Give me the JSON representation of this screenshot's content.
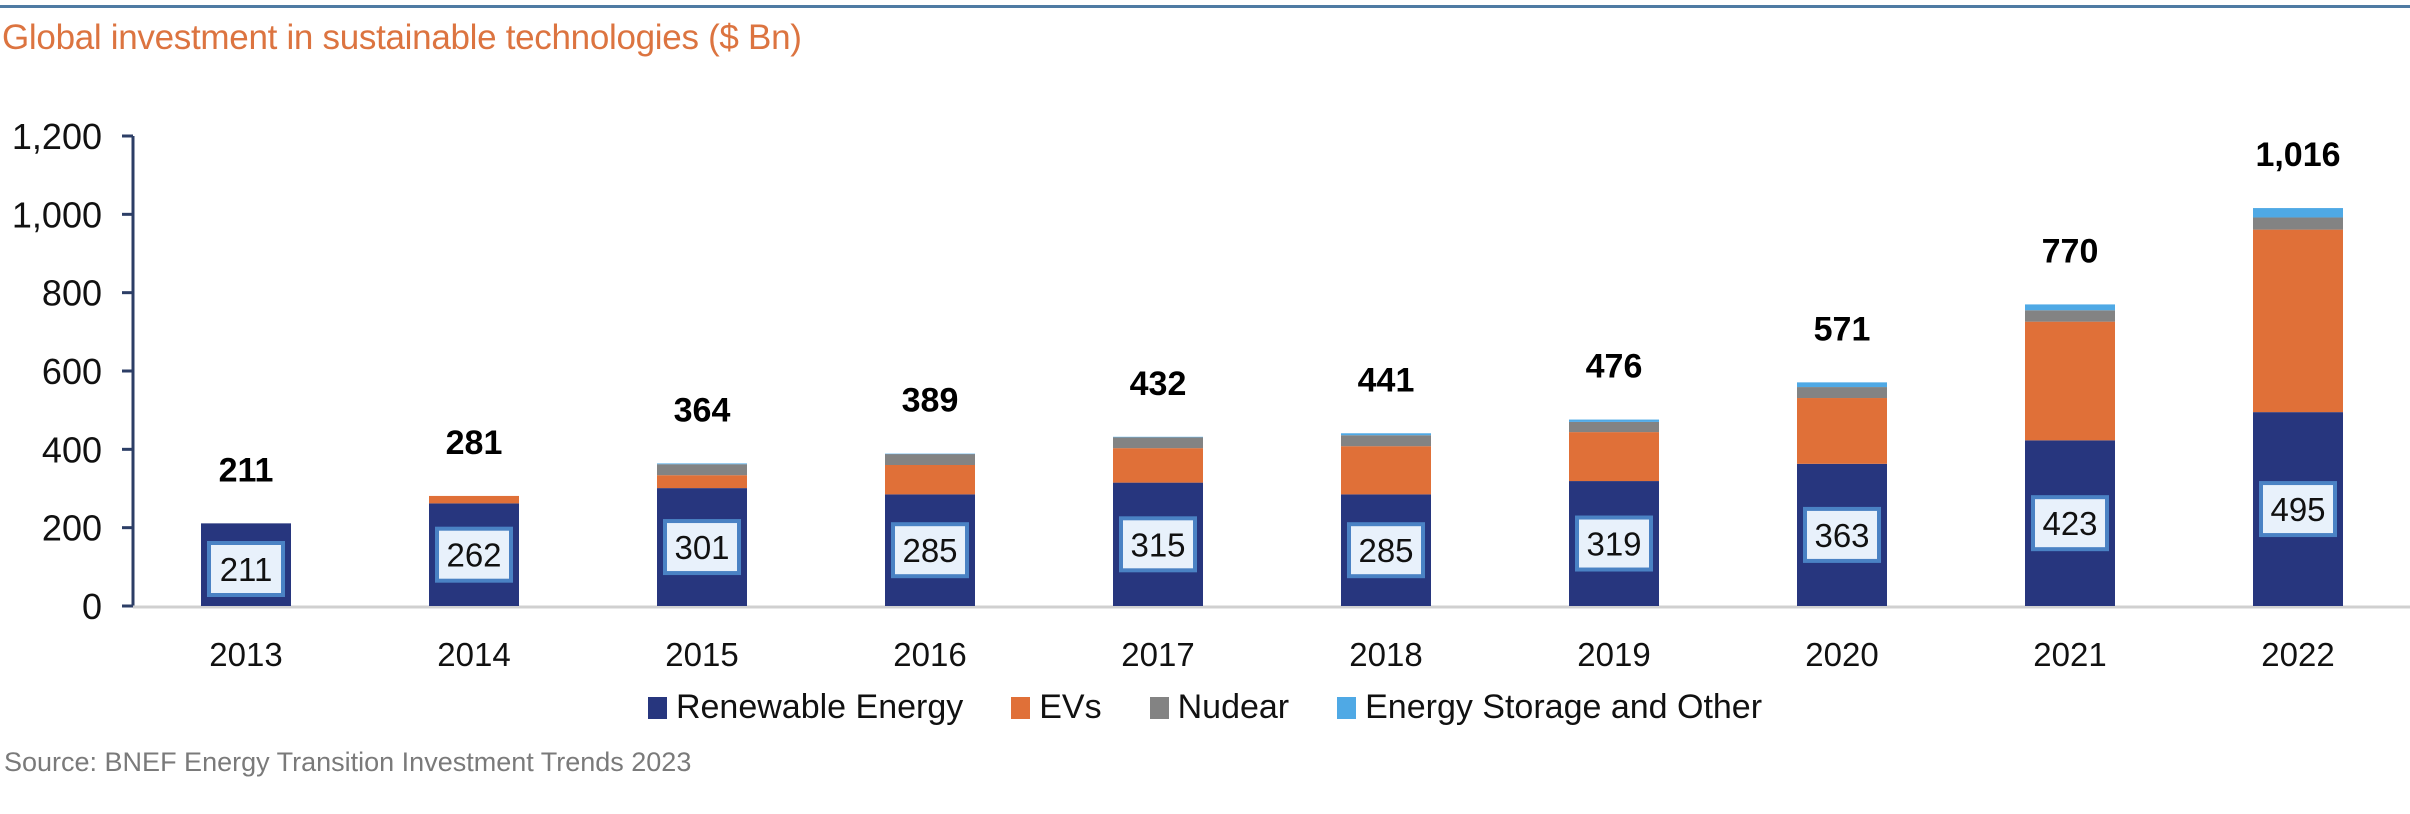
{
  "title": "Global investment in sustainable technologies ($ Bn)",
  "source": "Source: BNEF Energy Transition Investment Trends 2023",
  "colors": {
    "renewable": "#27367e",
    "evs": "#e07038",
    "nuclear": "#838383",
    "storage": "#4fa9e5",
    "title": "#dc7440",
    "axis": "#2c3e66",
    "rule": "#4f7ba3",
    "label_box_fill": "#e8f1fb",
    "label_box_border": "#4a82c4"
  },
  "legend": [
    {
      "label": "Renewable Energy",
      "color": "#27367e"
    },
    {
      "label": "EVs",
      "color": "#e07038"
    },
    {
      "label": "Nudear",
      "color": "#838383"
    },
    {
      "label": "Energy Storage and Other",
      "color": "#4fa9e5"
    }
  ],
  "chart_data": {
    "type": "bar",
    "stacked": true,
    "title": "Global investment in sustainable technologies ($ Bn)",
    "xlabel": "",
    "ylabel": "",
    "ylim": [
      0,
      1200
    ],
    "yticks": [
      0,
      200,
      400,
      600,
      800,
      1000,
      1200
    ],
    "ytick_labels": [
      "0",
      "200",
      "400",
      "600",
      "800",
      "1,000",
      "1,200"
    ],
    "grid": false,
    "legend_position": "bottom",
    "categories": [
      "2013",
      "2014",
      "2015",
      "2016",
      "2017",
      "2018",
      "2019",
      "2020",
      "2021",
      "2022"
    ],
    "series": [
      {
        "name": "Renewable Energy",
        "values": [
          211,
          262,
          301,
          285,
          315,
          285,
          319,
          363,
          423,
          495
        ]
      },
      {
        "name": "EVs",
        "values": [
          0,
          19,
          33,
          75,
          88,
          123,
          125,
          168,
          303,
          466
        ]
      },
      {
        "name": "Nuclear",
        "values": [
          0,
          0,
          28,
          28,
          28,
          28,
          26,
          28,
          29,
          31
        ]
      },
      {
        "name": "Energy Storage and Other",
        "values": [
          0,
          0,
          2,
          1,
          1,
          5,
          6,
          12,
          15,
          24
        ]
      }
    ],
    "totals": [
      211,
      281,
      364,
      389,
      432,
      441,
      476,
      571,
      770,
      1016
    ],
    "total_labels": [
      "211",
      "281",
      "364",
      "389",
      "432",
      "441",
      "476",
      "571",
      "770",
      "1,016"
    ],
    "renewable_labels": [
      "211",
      "262",
      "301",
      "285",
      "315",
      "285",
      "319",
      "363",
      "423",
      "495"
    ]
  }
}
